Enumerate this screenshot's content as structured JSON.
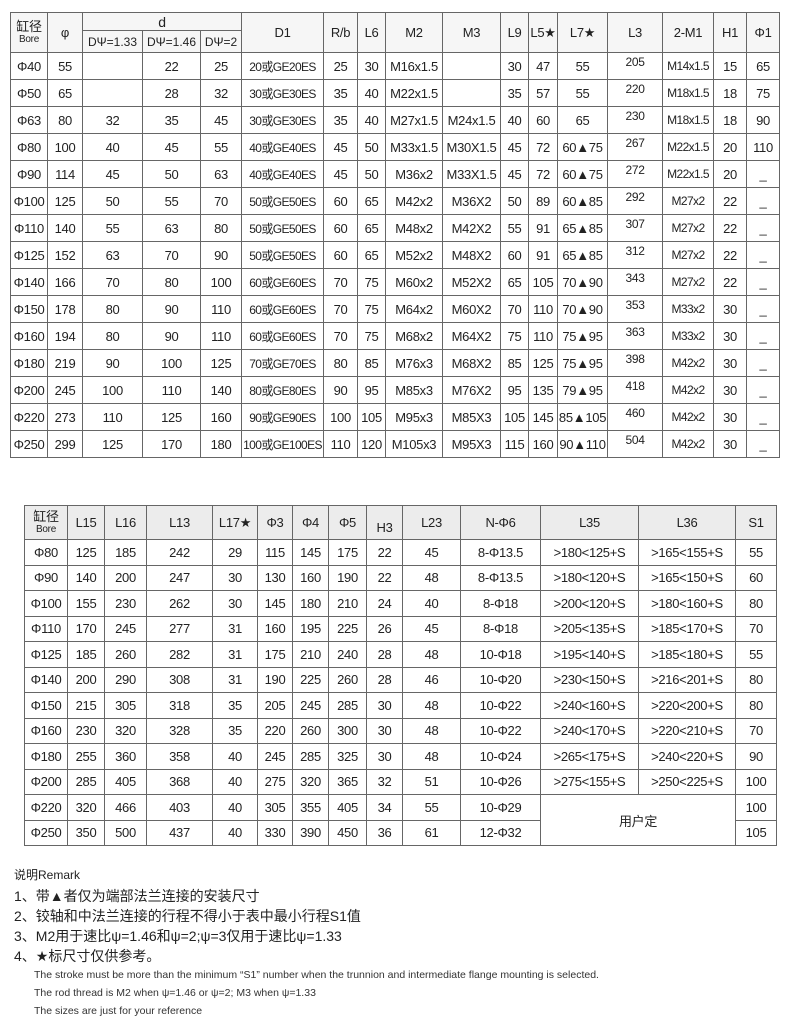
{
  "table1": {
    "headers": {
      "bore_cn": "缸径",
      "bore_en": "Bore",
      "phi": "φ",
      "d": "d",
      "d_sub": [
        "DΨ=1.33",
        "DΨ=1.46",
        "DΨ=2"
      ],
      "rest": [
        "D1",
        "R/b",
        "L6",
        "M2",
        "M3",
        "L9",
        "L5★",
        "L7★",
        "L3",
        "2-M1",
        "H1",
        "Φ1"
      ]
    },
    "rows": [
      [
        "Φ40",
        "55",
        "",
        "22",
        "25",
        "20或GE20ES",
        "25",
        "30",
        "M16x1.5",
        "",
        "30",
        "47",
        "55",
        "205",
        "M14x1.5",
        "15",
        "65"
      ],
      [
        "Φ50",
        "65",
        "",
        "28",
        "32",
        "30或GE30ES",
        "35",
        "40",
        "M22x1.5",
        "",
        "35",
        "57",
        "55",
        "220",
        "M18x1.5",
        "18",
        "75"
      ],
      [
        "Φ63",
        "80",
        "32",
        "35",
        "45",
        "30或GE30ES",
        "35",
        "40",
        "M27x1.5",
        "M24x1.5",
        "40",
        "60",
        "65",
        "230",
        "M18x1.5",
        "18",
        "90"
      ],
      [
        "Φ80",
        "100",
        "40",
        "45",
        "55",
        "40或GE40ES",
        "45",
        "50",
        "M33x1.5",
        "M30X1.5",
        "45",
        "72",
        "60▲75",
        "267",
        "M22x1.5",
        "20",
        "110"
      ],
      [
        "Φ90",
        "114",
        "45",
        "50",
        "63",
        "40或GE40ES",
        "45",
        "50",
        "M36x2",
        "M33X1.5",
        "45",
        "72",
        "60▲75",
        "272",
        "M22x1.5",
        "20",
        "_"
      ],
      [
        "Φ100",
        "125",
        "50",
        "55",
        "70",
        "50或GE50ES",
        "60",
        "65",
        "M42x2",
        "M36X2",
        "50",
        "89",
        "60▲85",
        "292",
        "M27x2",
        "22",
        "_"
      ],
      [
        "Φ110",
        "140",
        "55",
        "63",
        "80",
        "50或GE50ES",
        "60",
        "65",
        "M48x2",
        "M42X2",
        "55",
        "91",
        "65▲85",
        "307",
        "M27x2",
        "22",
        "_"
      ],
      [
        "Φ125",
        "152",
        "63",
        "70",
        "90",
        "50或GE50ES",
        "60",
        "65",
        "M52x2",
        "M48X2",
        "60",
        "91",
        "65▲85",
        "312",
        "M27x2",
        "22",
        "_"
      ],
      [
        "Φ140",
        "166",
        "70",
        "80",
        "100",
        "60或GE60ES",
        "70",
        "75",
        "M60x2",
        "M52X2",
        "65",
        "105",
        "70▲90",
        "343",
        "M27x2",
        "22",
        "_"
      ],
      [
        "Φ150",
        "178",
        "80",
        "90",
        "110",
        "60或GE60ES",
        "70",
        "75",
        "M64x2",
        "M60X2",
        "70",
        "110",
        "70▲90",
        "353",
        "M33x2",
        "30",
        "_"
      ],
      [
        "Φ160",
        "194",
        "80",
        "90",
        "110",
        "60或GE60ES",
        "70",
        "75",
        "M68x2",
        "M64X2",
        "75",
        "110",
        "75▲95",
        "363",
        "M33x2",
        "30",
        "_"
      ],
      [
        "Φ180",
        "219",
        "90",
        "100",
        "125",
        "70或GE70ES",
        "80",
        "85",
        "M76x3",
        "M68X2",
        "85",
        "125",
        "75▲95",
        "398",
        "M42x2",
        "30",
        "_"
      ],
      [
        "Φ200",
        "245",
        "100",
        "110",
        "140",
        "80或GE80ES",
        "90",
        "95",
        "M85x3",
        "M76X2",
        "95",
        "135",
        "79▲95",
        "418",
        "M42x2",
        "30",
        "_"
      ],
      [
        "Φ220",
        "273",
        "110",
        "125",
        "160",
        "90或GE90ES",
        "100",
        "105",
        "M95x3",
        "M85X3",
        "105",
        "145",
        "85▲105",
        "460",
        "M42x2",
        "30",
        "_"
      ],
      [
        "Φ250",
        "299",
        "125",
        "170",
        "180",
        "100或GE100ES",
        "110",
        "120",
        "M105x3",
        "M95X3",
        "115",
        "160",
        "90▲110",
        "504",
        "M42x2",
        "30",
        "_"
      ]
    ]
  },
  "table2": {
    "headers": {
      "bore_cn": "缸径",
      "bore_en": "Bore",
      "rest": [
        "L15",
        "L16",
        "L13",
        "L17★",
        "Φ3",
        "Φ4",
        "Φ5",
        "H3",
        "L23",
        "N-Φ6",
        "L35",
        "L36",
        "S1"
      ]
    },
    "rows": [
      [
        "Φ80",
        "125",
        "185",
        "242",
        "29",
        "115",
        "145",
        "175",
        "22",
        "45",
        "8-Φ13.5",
        ">180<125+S",
        ">165<155+S",
        "55"
      ],
      [
        "Φ90",
        "140",
        "200",
        "247",
        "30",
        "130",
        "160",
        "190",
        "22",
        "48",
        "8-Φ13.5",
        ">180<120+S",
        ">165<150+S",
        "60"
      ],
      [
        "Φ100",
        "155",
        "230",
        "262",
        "30",
        "145",
        "180",
        "210",
        "24",
        "40",
        "8-Φ18",
        ">200<120+S",
        ">180<160+S",
        "80"
      ],
      [
        "Φ110",
        "170",
        "245",
        "277",
        "31",
        "160",
        "195",
        "225",
        "26",
        "45",
        "8-Φ18",
        ">205<135+S",
        ">185<170+S",
        "70"
      ],
      [
        "Φ125",
        "185",
        "260",
        "282",
        "31",
        "175",
        "210",
        "240",
        "28",
        "48",
        "10-Φ18",
        ">195<140+S",
        ">185<180+S",
        "55"
      ],
      [
        "Φ140",
        "200",
        "290",
        "308",
        "31",
        "190",
        "225",
        "260",
        "28",
        "46",
        "10-Φ20",
        ">230<150+S",
        ">216<201+S",
        "80"
      ],
      [
        "Φ150",
        "215",
        "305",
        "318",
        "35",
        "205",
        "245",
        "285",
        "30",
        "48",
        "10-Φ22",
        ">240<160+S",
        ">220<200+S",
        "80"
      ],
      [
        "Φ160",
        "230",
        "320",
        "328",
        "35",
        "220",
        "260",
        "300",
        "30",
        "48",
        "10-Φ22",
        ">240<170+S",
        ">220<210+S",
        "70"
      ],
      [
        "Φ180",
        "255",
        "360",
        "358",
        "40",
        "245",
        "285",
        "325",
        "30",
        "48",
        "10-Φ24",
        ">265<175+S",
        ">240<220+S",
        "90"
      ],
      [
        "Φ200",
        "285",
        "405",
        "368",
        "40",
        "275",
        "320",
        "365",
        "32",
        "51",
        "10-Φ26",
        ">275<155+S",
        ">250<225+S",
        "100"
      ],
      [
        "Φ220",
        "320",
        "466",
        "403",
        "40",
        "305",
        "355",
        "405",
        "34",
        "55",
        "10-Φ29",
        null,
        null,
        "100"
      ],
      [
        "Φ250",
        "350",
        "500",
        "437",
        "40",
        "330",
        "390",
        "450",
        "36",
        "61",
        "12-Φ32",
        null,
        null,
        "105"
      ]
    ],
    "custom_label": "用户定"
  },
  "remarks": {
    "title": "说明Remark",
    "cn": [
      "1、带▲者仅为端部法兰连接的安装尺寸",
      "2、铰轴和中法兰连接的行程不得小于表中最小行程S1值",
      "3、M2用于速比ψ=1.46和ψ=2;ψ=3仅用于速比ψ=1.33",
      "4、★标尺寸仅供参考。"
    ],
    "en": [
      "The stroke must be more than the minimum “S1” number when the  trunnion and intermediate flange mounting is selected.",
      "The rod thread is M2 when ψ=1.46 or ψ=2; M3 when ψ=1.33",
      "The sizes are just for your reference"
    ]
  }
}
